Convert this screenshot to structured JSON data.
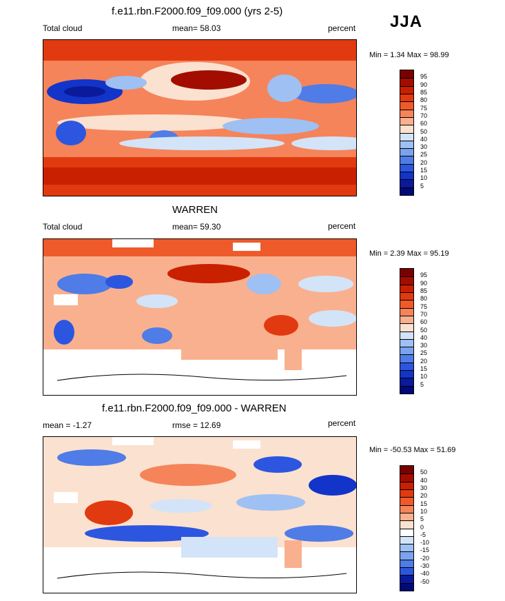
{
  "header": {
    "title": "f.e11.rbn.F2000.f09_f09.000 (yrs 2-5)",
    "season": "JJA"
  },
  "panels": [
    {
      "id": "model",
      "title": "",
      "left_label": "Total cloud",
      "center_label": "mean=  58.03",
      "right_label": "percent",
      "minmax": "Min =   1.34 Max =  98.99",
      "colorbar": {
        "labels": [
          "95",
          "90",
          "85",
          "80",
          "75",
          "70",
          "60",
          "50",
          "40",
          "30",
          "25",
          "20",
          "15",
          "10",
          "5"
        ],
        "colors": [
          "#7a0000",
          "#a30d00",
          "#c92000",
          "#e23a10",
          "#ef5a2a",
          "#f5845a",
          "#f9b08f",
          "#fbe1cf",
          "#d3e4f8",
          "#9fc0f2",
          "#7aa3ee",
          "#4f7ce6",
          "#2d56e0",
          "#1234c8",
          "#0a1a9a",
          "#000a78"
        ]
      }
    },
    {
      "id": "obs",
      "title": "WARREN",
      "left_label": "Total cloud",
      "center_label": "mean=  59.30",
      "right_label": "percent",
      "minmax": "Min =   2.39 Max =  95.19",
      "colorbar": {
        "labels": [
          "95",
          "90",
          "85",
          "80",
          "75",
          "70",
          "60",
          "50",
          "40",
          "30",
          "25",
          "20",
          "15",
          "10",
          "5"
        ],
        "colors": [
          "#7a0000",
          "#a30d00",
          "#c92000",
          "#e23a10",
          "#ef5a2a",
          "#f5845a",
          "#f9b08f",
          "#fbe1cf",
          "#d3e4f8",
          "#9fc0f2",
          "#7aa3ee",
          "#4f7ce6",
          "#2d56e0",
          "#1234c8",
          "#0a1a9a",
          "#000a78"
        ]
      }
    },
    {
      "id": "diff",
      "title": "f.e11.rbn.F2000.f09_f09.000 - WARREN",
      "left_label": "mean =  -1.27",
      "center_label": "rmse =  12.69",
      "right_label": "percent",
      "minmax": "Min = -50.53 Max =  51.69",
      "colorbar": {
        "labels": [
          "50",
          "40",
          "30",
          "20",
          "15",
          "10",
          "5",
          "0",
          "-5",
          "-10",
          "-15",
          "-20",
          "-30",
          "-40",
          "-50"
        ],
        "colors": [
          "#7a0000",
          "#a30d00",
          "#c92000",
          "#e23a10",
          "#ef5a2a",
          "#f5845a",
          "#f9b08f",
          "#fbe1cf",
          "#ffffff",
          "#d3e4f8",
          "#9fc0f2",
          "#7aa3ee",
          "#4f7ce6",
          "#2d56e0",
          "#0a1a9a",
          "#000a78"
        ]
      }
    }
  ],
  "chart_data": [
    {
      "type": "heatmap",
      "title": "f.e11.rbn.F2000.f09_f09.000 (yrs 2-5)",
      "variable": "Total cloud",
      "units": "percent",
      "season": "JJA",
      "mean": 58.03,
      "min": 1.34,
      "max": 98.99,
      "levels": [
        5,
        10,
        15,
        20,
        25,
        30,
        40,
        50,
        60,
        70,
        75,
        80,
        85,
        90,
        95
      ]
    },
    {
      "type": "heatmap",
      "title": "WARREN",
      "variable": "Total cloud",
      "units": "percent",
      "season": "JJA",
      "mean": 59.3,
      "min": 2.39,
      "max": 95.19,
      "levels": [
        5,
        10,
        15,
        20,
        25,
        30,
        40,
        50,
        60,
        70,
        75,
        80,
        85,
        90,
        95
      ]
    },
    {
      "type": "heatmap",
      "title": "f.e11.rbn.F2000.f09_f09.000 - WARREN",
      "units": "percent",
      "season": "JJA",
      "mean": -1.27,
      "rmse": 12.69,
      "min": -50.53,
      "max": 51.69,
      "levels": [
        -50,
        -40,
        -30,
        -20,
        -15,
        -10,
        -5,
        0,
        5,
        10,
        15,
        20,
        30,
        40,
        50
      ]
    }
  ]
}
